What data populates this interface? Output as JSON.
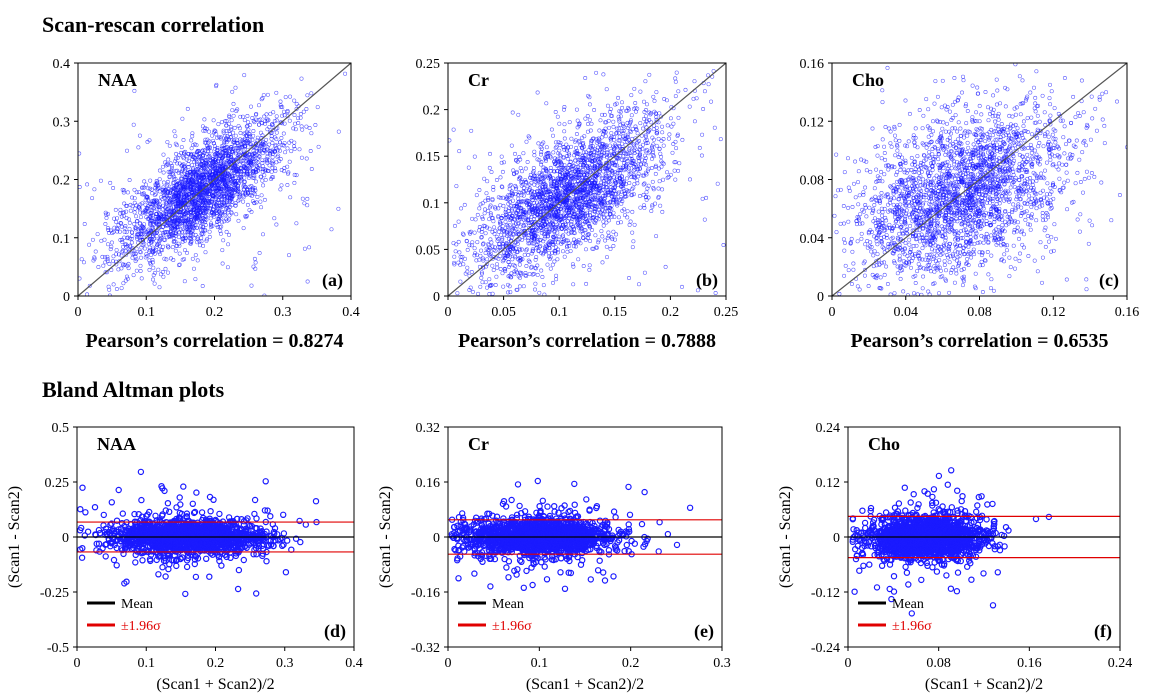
{
  "sections": {
    "scatter_title": "Scan-rescan correlation",
    "bland_title": "Bland Altman plots"
  },
  "colors": {
    "points": "#1a1aff",
    "diag": "#555555",
    "mean": "#000000",
    "limits": "#e00000"
  },
  "chart_data": [
    {
      "id": "a",
      "type": "scatter",
      "label": "NAA",
      "panel": "(a)",
      "xlim": [
        0,
        0.4
      ],
      "ylim": [
        0,
        0.4
      ],
      "xticks": [
        "0",
        "0.1",
        "0.2",
        "0.3",
        "0.4"
      ],
      "yticks": [
        "0",
        "0.1",
        "0.2",
        "0.3",
        "0.4"
      ],
      "center": 0.18,
      "spread": 0.055,
      "noise": 0.022,
      "pearson": "Pearson’s correlation = 0.8274"
    },
    {
      "id": "b",
      "type": "scatter",
      "label": "Cr",
      "panel": "(b)",
      "xlim": [
        0,
        0.25
      ],
      "ylim": [
        0,
        0.25
      ],
      "xticks": [
        "0",
        "0.05",
        "0.1",
        "0.15",
        "0.2",
        "0.25"
      ],
      "yticks": [
        "0",
        "0.05",
        "0.1",
        "0.15",
        "0.2",
        "0.25"
      ],
      "center": 0.11,
      "spread": 0.04,
      "noise": 0.018,
      "pearson": "Pearson’s correlation = 0.7888"
    },
    {
      "id": "c",
      "type": "scatter",
      "label": "Cho",
      "panel": "(c)",
      "xlim": [
        0,
        0.16
      ],
      "ylim": [
        0,
        0.16
      ],
      "xticks": [
        "0",
        "0.04",
        "0.08",
        "0.12",
        "0.16"
      ],
      "yticks": [
        "0",
        "0.04",
        "0.08",
        "0.12",
        "0.16"
      ],
      "center": 0.07,
      "spread": 0.024,
      "noise": 0.016,
      "pearson": "Pearson’s correlation = 0.6535"
    },
    {
      "id": "d",
      "type": "bland-altman",
      "label": "NAA",
      "panel": "(d)",
      "xlim": [
        0,
        0.4
      ],
      "ylim": [
        -0.5,
        0.5
      ],
      "xticks": [
        "0",
        "0.1",
        "0.2",
        "0.3",
        "0.4"
      ],
      "yticks": [
        "-0.5",
        "-0.25",
        "0",
        "0.25",
        "0.5"
      ],
      "mean": 0,
      "limit": 0.068,
      "center": 0.16,
      "spread": 0.055,
      "dnoise": 0.038,
      "xlabel": "(Scan1 + Scan2)/2",
      "ylabel": "(Scan1 - Scan2)",
      "legend": {
        "mean": "Mean",
        "limits": "±1.96σ"
      }
    },
    {
      "id": "e",
      "type": "bland-altman",
      "label": "Cr",
      "panel": "(e)",
      "xlim": [
        0,
        0.3
      ],
      "ylim": [
        -0.32,
        0.32
      ],
      "xticks": [
        "0",
        "0.1",
        "0.2",
        "0.3"
      ],
      "yticks": [
        "-0.32",
        "-0.16",
        "0",
        "0.16",
        "0.32"
      ],
      "mean": 0,
      "limit": 0.05,
      "center": 0.1,
      "spread": 0.04,
      "dnoise": 0.026,
      "xlabel": "(Scan1 + Scan2)/2",
      "ylabel": "(Scan1 - Scan2)",
      "legend": {
        "mean": "Mean",
        "limits": "±1.96σ"
      }
    },
    {
      "id": "f",
      "type": "bland-altman",
      "label": "Cho",
      "panel": "(f)",
      "xlim": [
        0,
        0.24
      ],
      "ylim": [
        -0.24,
        0.24
      ],
      "xticks": [
        "0",
        "0.08",
        "0.16",
        "0.24"
      ],
      "yticks": [
        "-0.24",
        "-0.12",
        "0",
        "0.12",
        "0.24"
      ],
      "mean": 0,
      "limit": 0.045,
      "center": 0.07,
      "spread": 0.025,
      "dnoise": 0.023,
      "xlabel": "(Scan1 + Scan2)/2",
      "ylabel": "(Scan1 - Scan2)",
      "legend": {
        "mean": "Mean",
        "limits": "±1.96σ"
      }
    }
  ]
}
